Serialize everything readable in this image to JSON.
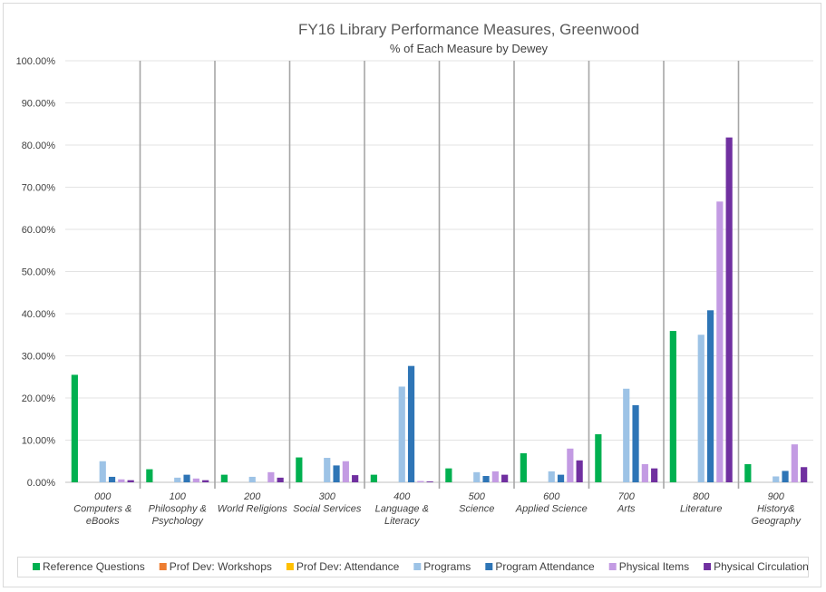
{
  "chart_data": {
    "type": "bar",
    "title": "FY16 Library Performance Measures, Greenwood",
    "subtitle": "% of Each Measure by Dewey",
    "xlabel": "",
    "ylabel": "",
    "ylim": [
      0,
      100
    ],
    "y_ticks": [
      "0.00%",
      "10.00%",
      "20.00%",
      "30.00%",
      "40.00%",
      "50.00%",
      "60.00%",
      "70.00%",
      "80.00%",
      "90.00%",
      "100.00%"
    ],
    "grid": true,
    "legend_position": "bottom",
    "categories": [
      {
        "code": "000",
        "name": [
          "Computers &",
          "eBooks"
        ]
      },
      {
        "code": "100",
        "name": [
          "Philosophy &",
          "Psychology"
        ]
      },
      {
        "code": "200",
        "name": [
          "World Religions"
        ]
      },
      {
        "code": "300",
        "name": [
          "Social Services"
        ]
      },
      {
        "code": "400",
        "name": [
          "Language &",
          "Literacy"
        ]
      },
      {
        "code": "500",
        "name": [
          "Science"
        ]
      },
      {
        "code": "600",
        "name": [
          "Applied Science"
        ]
      },
      {
        "code": "700",
        "name": [
          "Arts"
        ]
      },
      {
        "code": "800",
        "name": [
          "Literature"
        ]
      },
      {
        "code": "900",
        "name": [
          "History&",
          "Geography"
        ]
      }
    ],
    "series": [
      {
        "name": "Reference Questions",
        "color": "#00b050",
        "values": [
          25.5,
          3.1,
          1.8,
          5.9,
          1.8,
          3.3,
          6.9,
          11.4,
          35.9,
          4.3
        ]
      },
      {
        "name": "Prof Dev: Workshops",
        "color": "#ed7d31",
        "values": [
          0,
          0,
          0,
          0,
          0,
          0,
          0,
          0,
          0,
          0
        ]
      },
      {
        "name": "Prof Dev: Attendance",
        "color": "#ffc000",
        "values": [
          0,
          0,
          0,
          0,
          0,
          0,
          0,
          0,
          0,
          0
        ]
      },
      {
        "name": "Programs",
        "color": "#9dc3e6",
        "values": [
          5.0,
          1.1,
          1.3,
          5.8,
          22.7,
          2.4,
          2.6,
          22.2,
          35.0,
          1.4
        ]
      },
      {
        "name": "Program Attendance",
        "color": "#2e75b6",
        "values": [
          1.3,
          1.8,
          0,
          4.0,
          27.6,
          1.5,
          1.8,
          18.3,
          40.8,
          2.7
        ]
      },
      {
        "name": "Physical Items",
        "color": "#c39be3",
        "values": [
          0.7,
          0.9,
          2.4,
          5.0,
          0.3,
          2.6,
          8.0,
          4.3,
          66.6,
          9.0
        ]
      },
      {
        "name": "Physical Circulation",
        "color": "#7030a0",
        "values": [
          0.5,
          0.5,
          1.1,
          1.7,
          0.2,
          1.8,
          5.2,
          3.3,
          81.8,
          3.6
        ]
      }
    ]
  }
}
